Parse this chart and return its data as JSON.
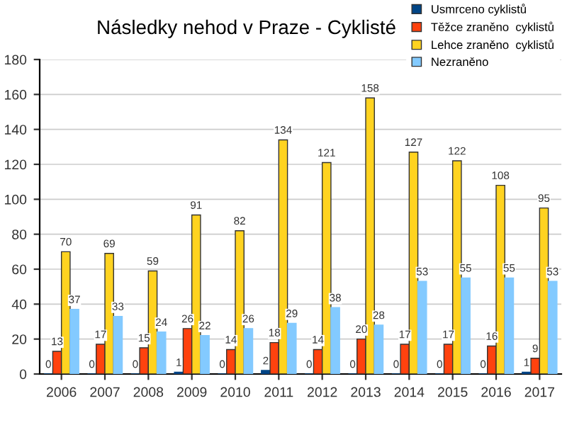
{
  "chart_data": {
    "type": "bar",
    "title": "Následky nehod v Praze - Cyklisté",
    "categories": [
      "2006",
      "2007",
      "2008",
      "2009",
      "2010",
      "2011",
      "2012",
      "2013",
      "2014",
      "2015",
      "2016",
      "2017"
    ],
    "series": [
      {
        "name": "Usmrceno cyklistů",
        "color": "#004586",
        "values": [
          0,
          0,
          0,
          1,
          0,
          2,
          0,
          0,
          0,
          0,
          0,
          1
        ]
      },
      {
        "name": "Těžce zraněno  cyklistů",
        "color": "#ff420e",
        "values": [
          13,
          17,
          15,
          26,
          14,
          18,
          14,
          20,
          17,
          17,
          16,
          9
        ]
      },
      {
        "name": "Lehce zraněno  cyklistů",
        "color": "#ffd320",
        "values": [
          70,
          69,
          59,
          91,
          82,
          134,
          121,
          158,
          127,
          122,
          108,
          95
        ]
      },
      {
        "name": "Nezraněno",
        "color": "#83caff",
        "values": [
          37,
          33,
          24,
          22,
          26,
          29,
          38,
          28,
          53,
          55,
          55,
          53
        ]
      }
    ],
    "ylim": [
      0,
      180
    ],
    "yticks": [
      0,
      20,
      40,
      60,
      80,
      100,
      120,
      140,
      160,
      180
    ],
    "grid": "y",
    "legend": "top right",
    "data_labels": true
  }
}
